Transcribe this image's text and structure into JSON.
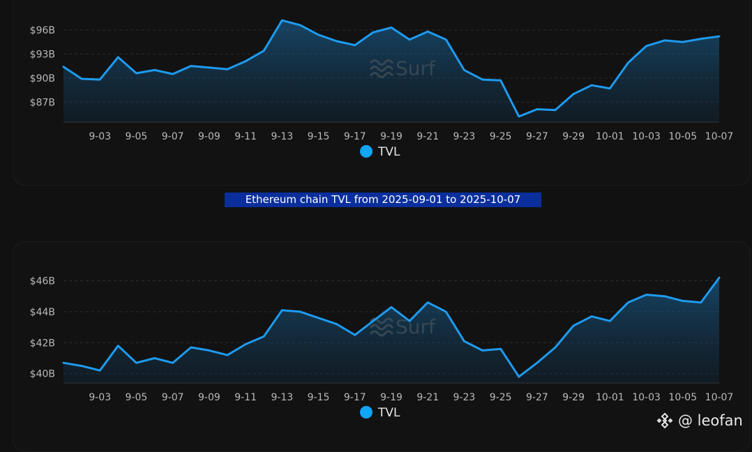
{
  "caption": "Ethereum chain TVL from 2025-09-01 to 2025-10-07",
  "watermark": "Surf",
  "credit": "@ leofan",
  "colors": {
    "background": "#111111",
    "line": "#1e9bf0",
    "legend_dot": "#12a4f5",
    "caption_bg": "#0a2f9c",
    "grid": "#2e2e2e"
  },
  "chart_data": [
    {
      "type": "area",
      "legend_placement": "bottom-center",
      "grid": true,
      "ylim": [
        84.5,
        98
      ],
      "yticks": [
        87,
        90,
        93,
        96
      ],
      "ytick_labels": [
        "$87B",
        "$90B",
        "$93B",
        "$96B"
      ],
      "xtick_labels": [
        "9-03",
        "9-05",
        "9-07",
        "9-09",
        "9-11",
        "9-13",
        "9-15",
        "9-17",
        "9-19",
        "9-21",
        "9-23",
        "9-25",
        "9-27",
        "9-29",
        "10-01",
        "10-03",
        "10-05",
        "10-07"
      ],
      "x": [
        "9-01",
        "9-02",
        "9-03",
        "9-04",
        "9-05",
        "9-06",
        "9-07",
        "9-08",
        "9-09",
        "9-10",
        "9-11",
        "9-12",
        "9-13",
        "9-14",
        "9-15",
        "9-16",
        "9-17",
        "9-18",
        "9-19",
        "9-20",
        "9-21",
        "9-22",
        "9-23",
        "9-24",
        "9-25",
        "9-26",
        "9-27",
        "9-28",
        "9-29",
        "9-30",
        "10-01",
        "10-02",
        "10-03",
        "10-04",
        "10-05",
        "10-06",
        "10-07"
      ],
      "series": [
        {
          "name": "TVL",
          "values": [
            91.4,
            89.9,
            89.8,
            92.6,
            90.6,
            91.0,
            90.5,
            91.5,
            91.3,
            91.1,
            92.1,
            93.4,
            97.2,
            96.6,
            95.4,
            94.6,
            94.1,
            95.7,
            96.3,
            94.8,
            95.8,
            94.8,
            91.0,
            89.8,
            89.7,
            85.2,
            86.1,
            86.0,
            88.0,
            89.1,
            88.7,
            91.9,
            94.0,
            94.7,
            94.5,
            94.9,
            95.2
          ]
        }
      ]
    },
    {
      "type": "area",
      "legend_placement": "bottom-center",
      "grid": true,
      "ylim": [
        39.4,
        46.7
      ],
      "yticks": [
        40,
        42,
        44,
        46
      ],
      "ytick_labels": [
        "$40B",
        "$42B",
        "$44B",
        "$46B"
      ],
      "xtick_labels": [
        "9-03",
        "9-05",
        "9-07",
        "9-09",
        "9-11",
        "9-13",
        "9-15",
        "9-17",
        "9-19",
        "9-21",
        "9-23",
        "9-25",
        "9-27",
        "9-29",
        "10-01",
        "10-03",
        "10-05",
        "10-07"
      ],
      "x": [
        "9-01",
        "9-02",
        "9-03",
        "9-04",
        "9-05",
        "9-06",
        "9-07",
        "9-08",
        "9-09",
        "9-10",
        "9-11",
        "9-12",
        "9-13",
        "9-14",
        "9-15",
        "9-16",
        "9-17",
        "9-18",
        "9-19",
        "9-20",
        "9-21",
        "9-22",
        "9-23",
        "9-24",
        "9-25",
        "9-26",
        "9-27",
        "9-28",
        "9-29",
        "9-30",
        "10-01",
        "10-02",
        "10-03",
        "10-04",
        "10-05",
        "10-06",
        "10-07"
      ],
      "series": [
        {
          "name": "TVL",
          "values": [
            40.7,
            40.5,
            40.2,
            41.8,
            40.7,
            41.0,
            40.7,
            41.7,
            41.5,
            41.2,
            41.9,
            42.4,
            44.1,
            44.0,
            43.6,
            43.2,
            42.5,
            43.4,
            44.3,
            43.4,
            44.6,
            44.0,
            42.1,
            41.5,
            41.6,
            39.8,
            40.7,
            41.7,
            43.1,
            43.7,
            43.4,
            44.6,
            45.1,
            45.0,
            44.7,
            44.6,
            46.2
          ]
        }
      ]
    }
  ]
}
